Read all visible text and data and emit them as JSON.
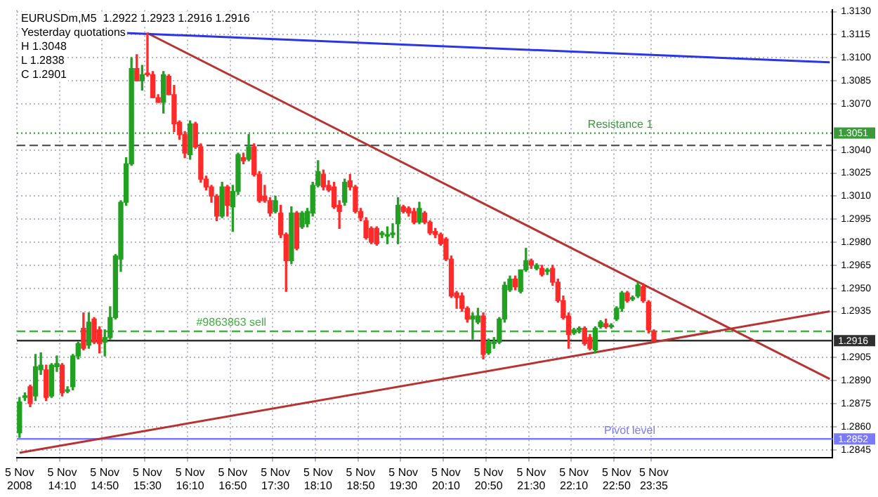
{
  "chart_data": {
    "type": "candlestick",
    "title": "EURUSDm,M5  1.2922 1.2923 1.2916 1.2916",
    "annotations": [
      "Yesterday quotations",
      "H 1.3048",
      "L 1.2838",
      "C 1.2901"
    ],
    "categories": [
      "5 Nov 2008",
      null,
      null,
      null,
      null,
      null,
      null,
      null,
      "5 Nov 14:10",
      null,
      null,
      null,
      null,
      null,
      null,
      null,
      "5 Nov 14:50",
      null,
      null,
      null,
      null,
      null,
      null,
      null,
      "5 Nov 15:30",
      null,
      null,
      null,
      null,
      null,
      null,
      null,
      "5 Nov 16:10",
      null,
      null,
      null,
      null,
      null,
      null,
      null,
      "5 Nov 16:50",
      null,
      null,
      null,
      null,
      null,
      null,
      null,
      "5 Nov 17:30",
      null,
      null,
      null,
      null,
      null,
      null,
      null,
      "5 Nov 18:10",
      null,
      null,
      null,
      null,
      null,
      null,
      null,
      "5 Nov 18:50",
      null,
      null,
      null,
      null,
      null,
      null,
      null,
      "5 Nov 19:30",
      null,
      null,
      null,
      null,
      null,
      null,
      null,
      "5 Nov 20:10",
      null,
      null,
      null,
      null,
      null,
      null,
      null,
      "5 Nov 20:50",
      null,
      null,
      null,
      null,
      null,
      null,
      null,
      "5 Nov 21:30",
      null,
      null,
      null,
      null,
      null,
      null,
      null,
      "5 Nov 22:10",
      null,
      null,
      null,
      null,
      null,
      null,
      null,
      "5 Nov 22:50",
      null,
      null,
      null,
      null,
      null,
      null,
      "5 Nov 23:35",
      null,
      null,
      null,
      null,
      null,
      null,
      null,
      null,
      null,
      null,
      null,
      null,
      null,
      null,
      null,
      null,
      null,
      null,
      null,
      null,
      null,
      null,
      null,
      null,
      null,
      null,
      null,
      null,
      null,
      null,
      null,
      null,
      null
    ],
    "ohlc": [
      [
        1.2856,
        1.2879,
        1.2853,
        1.2876
      ],
      [
        1.2879,
        1.2882,
        1.2877,
        1.288
      ],
      [
        1.2886,
        1.2887,
        1.2873,
        1.2875
      ],
      [
        1.288,
        1.2907,
        1.2877,
        1.2899
      ],
      [
        1.2897,
        1.2908,
        1.2894,
        1.29
      ],
      [
        1.2897,
        1.29,
        1.2877,
        1.2879
      ],
      [
        1.288,
        1.2901,
        1.2879,
        1.29
      ],
      [
        1.2899,
        1.2906,
        1.2896,
        1.2901
      ],
      [
        1.29,
        1.2901,
        1.288,
        1.2882
      ],
      [
        1.2883,
        1.2886,
        1.2882,
        1.2884
      ],
      [
        1.2886,
        1.2907,
        1.2884,
        1.2906
      ],
      [
        1.2906,
        1.2915,
        1.2904,
        1.2914
      ],
      [
        1.2924,
        1.2934,
        1.291,
        1.2911
      ],
      [
        1.2913,
        1.2934,
        1.2911,
        1.2928
      ],
      [
        1.293,
        1.2931,
        1.2914,
        1.2915
      ],
      [
        1.2923,
        1.2925,
        1.2908,
        1.2914
      ],
      [
        1.2915,
        1.2923,
        1.2906,
        1.2918
      ],
      [
        1.2918,
        1.2938,
        1.2917,
        1.2931
      ],
      [
        1.2931,
        1.2972,
        1.293,
        1.2971
      ],
      [
        1.2969,
        1.3007,
        1.2961,
        1.3006
      ],
      [
        1.3006,
        1.3035,
        1.3004,
        1.3031
      ],
      [
        1.3031,
        1.31,
        1.303,
        1.3093
      ],
      [
        1.3093,
        1.3102,
        1.3085,
        1.3085
      ],
      [
        1.3085,
        1.3095,
        1.3079,
        1.3089
      ],
      [
        1.309,
        1.3116,
        1.3088,
        1.3089
      ],
      [
        1.3089,
        1.3091,
        1.3074,
        1.3074
      ],
      [
        1.3074,
        1.3076,
        1.3071,
        1.3071
      ],
      [
        1.3071,
        1.3091,
        1.3064,
        1.3089
      ],
      [
        1.3088,
        1.3089,
        1.3076,
        1.3076
      ],
      [
        1.3076,
        1.3082,
        1.3052,
        1.3057
      ],
      [
        1.3058,
        1.3059,
        1.3047,
        1.305
      ],
      [
        1.305,
        1.3052,
        1.3035,
        1.3038
      ],
      [
        1.3037,
        1.3059,
        1.3034,
        1.3057
      ],
      [
        1.3057,
        1.3058,
        1.3041,
        1.3042
      ],
      [
        1.3042,
        1.3044,
        1.3019,
        1.3021
      ],
      [
        1.3021,
        1.3023,
        1.3014,
        1.3016
      ],
      [
        1.3016,
        1.3017,
        1.3006,
        1.301
      ],
      [
        1.301,
        1.3011,
        1.2994,
        1.2997
      ],
      [
        1.2997,
        1.3019,
        1.2996,
        1.3016
      ],
      [
        1.3016,
        1.3017,
        1.2997,
        1.3004
      ],
      [
        1.3003,
        1.3017,
        1.2987,
        1.3013
      ],
      [
        1.3013,
        1.3038,
        1.3011,
        1.3037
      ],
      [
        1.3035,
        1.3038,
        1.3031,
        1.3033
      ],
      [
        1.3034,
        1.305,
        1.3033,
        1.3042
      ],
      [
        1.3042,
        1.3044,
        1.3023,
        1.3024
      ],
      [
        1.3024,
        1.3026,
        1.3006,
        1.3007
      ],
      [
        1.301,
        1.3017,
        1.3006,
        1.3007
      ],
      [
        1.3007,
        1.3009,
        1.2997,
        1.2999
      ],
      [
        1.3,
        1.301,
        1.2999,
        1.3007
      ],
      [
        1.2999,
        1.3004,
        1.2983,
        1.2985
      ],
      [
        1.2985,
        1.2986,
        1.2948,
        1.2968
      ],
      [
        1.2968,
        1.3003,
        1.2966,
        1.2999
      ],
      [
        1.2999,
        1.3,
        1.2975,
        1.2976
      ],
      [
        1.299,
        1.3,
        1.2989,
        1.2999
      ],
      [
        1.2992,
        1.3002,
        1.299,
        1.3
      ],
      [
        1.2999,
        1.3019,
        1.2997,
        1.3017
      ],
      [
        1.3017,
        1.3033,
        1.3016,
        1.3026
      ],
      [
        1.3024,
        1.3027,
        1.3014,
        1.3016
      ],
      [
        1.3017,
        1.302,
        1.3013,
        1.3014
      ],
      [
        1.3016,
        1.3019,
        1.3002,
        1.3003
      ],
      [
        1.3004,
        1.3007,
        1.2989,
        1.3
      ],
      [
        1.3006,
        1.3021,
        1.3004,
        1.3019
      ],
      [
        1.302,
        1.3024,
        1.3014,
        1.3016
      ],
      [
        1.3016,
        1.3017,
        1.2999,
        1.3
      ],
      [
        1.3,
        1.3002,
        1.2994,
        1.2996
      ],
      [
        1.2994,
        1.2996,
        1.2982,
        1.2983
      ],
      [
        1.2989,
        1.299,
        1.2979,
        1.298
      ],
      [
        1.2989,
        1.299,
        1.2978,
        1.2979
      ],
      [
        1.2985,
        1.2987,
        1.2983,
        1.2986
      ],
      [
        1.2984,
        1.299,
        1.2979,
        1.2985
      ],
      [
        1.2985,
        1.2992,
        1.2983,
        1.2986
      ],
      [
        1.2992,
        1.3009,
        1.2979,
        1.3004
      ],
      [
        1.3003,
        1.3004,
        1.2999,
        1.3
      ],
      [
        1.3002,
        1.3003,
        1.2997,
        1.2999
      ],
      [
        1.3,
        1.3002,
        1.2992,
        1.2993
      ],
      [
        1.2993,
        1.3006,
        1.2992,
        1.3002
      ],
      [
        1.2999,
        1.3,
        1.2992,
        1.2993
      ],
      [
        1.2993,
        1.2994,
        1.2985,
        1.2986
      ],
      [
        1.2987,
        1.2989,
        1.2983,
        1.2985
      ],
      [
        1.2985,
        1.2986,
        1.2978,
        1.2979
      ],
      [
        1.2982,
        1.2983,
        1.2968,
        1.2969
      ],
      [
        1.2969,
        1.2971,
        1.2944,
        1.2945
      ],
      [
        1.2947,
        1.2948,
        1.2937,
        1.2944
      ],
      [
        1.2945,
        1.2947,
        1.2935,
        1.2937
      ],
      [
        1.2937,
        1.2938,
        1.2928,
        1.293
      ],
      [
        1.293,
        1.2934,
        1.2917,
        1.2932
      ],
      [
        1.2928,
        1.2937,
        1.2927,
        1.2932
      ],
      [
        1.2932,
        1.2934,
        1.2904,
        1.2907
      ],
      [
        1.2908,
        1.2917,
        1.2907,
        1.2915
      ],
      [
        1.2914,
        1.2918,
        1.2911,
        1.2915
      ],
      [
        1.2915,
        1.2931,
        1.2914,
        1.293
      ],
      [
        1.293,
        1.2954,
        1.2928,
        1.2952
      ],
      [
        1.2949,
        1.2958,
        1.2948,
        1.2956
      ],
      [
        1.2956,
        1.2958,
        1.2949,
        1.2951
      ],
      [
        1.2948,
        1.2962,
        1.2947,
        1.2962
      ],
      [
        1.2962,
        1.2976,
        1.2961,
        1.2968
      ],
      [
        1.2968,
        1.2969,
        1.2963,
        1.2965
      ],
      [
        1.2963,
        1.2966,
        1.2962,
        1.2965
      ],
      [
        1.2963,
        1.2965,
        1.2958,
        1.2959
      ],
      [
        1.2961,
        1.2963,
        1.2959,
        1.2962
      ],
      [
        1.2963,
        1.2965,
        1.2952,
        1.2954
      ],
      [
        1.2954,
        1.2956,
        1.2941,
        1.2942
      ],
      [
        1.2942,
        1.2945,
        1.293,
        1.2931
      ],
      [
        1.2932,
        1.2934,
        1.2911,
        1.292
      ],
      [
        1.2921,
        1.2924,
        1.292,
        1.2923
      ],
      [
        1.2923,
        1.2925,
        1.2921,
        1.2924
      ],
      [
        1.2924,
        1.2925,
        1.2913,
        1.2914
      ],
      [
        1.2918,
        1.292,
        1.291,
        1.2911
      ],
      [
        1.291,
        1.2925,
        1.2908,
        1.2924
      ],
      [
        1.2925,
        1.2929,
        1.2924,
        1.2928
      ],
      [
        1.2927,
        1.293,
        1.2924,
        1.2925
      ],
      [
        1.2925,
        1.2927,
        1.2924,
        1.2926
      ],
      [
        1.293,
        1.2938,
        1.2929,
        1.2937
      ],
      [
        1.2937,
        1.2948,
        1.2935,
        1.2947
      ],
      [
        1.2947,
        1.2948,
        1.2941,
        1.2942
      ],
      [
        1.2943,
        1.2945,
        1.2942,
        1.2944
      ],
      [
        1.2945,
        1.2954,
        1.2944,
        1.2952
      ],
      [
        1.2951,
        1.2953,
        1.2941,
        1.2942
      ],
      [
        1.2941,
        1.2942,
        1.2921,
        1.2923
      ],
      [
        1.2922,
        1.2923,
        1.2916,
        1.2916
      ],
      null,
      null,
      null,
      null,
      null,
      null,
      null,
      null,
      null,
      null,
      null,
      null,
      null,
      null,
      null,
      null,
      null,
      null,
      null,
      null,
      null,
      null,
      null,
      null,
      null,
      null,
      null,
      null,
      null,
      null,
      null,
      null,
      null
    ],
    "colors": [
      "#22a022",
      "#22a022",
      "#ff2a2a",
      "#22a022",
      "#22a022",
      "#ff2a2a",
      "#22a022",
      "#22a022",
      "#ff2a2a",
      "#22a022",
      "#22a022",
      "#22a022",
      "#ff2a2a",
      "#22a022",
      "#ff2a2a",
      "#ff2a2a",
      "#22a022",
      "#22a022",
      "#22a022",
      "#22a022",
      "#22a022",
      "#22a022",
      "#ff2a2a",
      "#22a022",
      "#ff2a2a",
      "#ff2a2a",
      "#ff2a2a",
      "#22a022",
      "#ff2a2a",
      "#ff2a2a",
      "#ff2a2a",
      "#ff2a2a",
      "#22a022",
      "#ff2a2a",
      "#ff2a2a",
      "#ff2a2a",
      "#ff2a2a",
      "#ff2a2a",
      "#22a022",
      "#ff2a2a",
      "#22a022",
      "#22a022",
      "#ff2a2a",
      "#22a022",
      "#ff2a2a",
      "#ff2a2a",
      "#ff2a2a",
      "#ff2a2a",
      "#22a022",
      "#ff2a2a",
      "#ff2a2a",
      "#22a022",
      "#ff2a2a",
      "#22a022",
      "#22a022",
      "#22a022",
      "#22a022",
      "#ff2a2a",
      "#ff2a2a",
      "#ff2a2a",
      "#ff2a2a",
      "#22a022",
      "#ff2a2a",
      "#ff2a2a",
      "#ff2a2a",
      "#ff2a2a",
      "#ff2a2a",
      "#ff2a2a",
      "#22a022",
      "#22a022",
      "#22a022",
      "#22a022",
      "#ff2a2a",
      "#ff2a2a",
      "#ff2a2a",
      "#22a022",
      "#ff2a2a",
      "#ff2a2a",
      "#ff2a2a",
      "#ff2a2a",
      "#ff2a2a",
      "#ff2a2a",
      "#ff2a2a",
      "#ff2a2a",
      "#ff2a2a",
      "#22a022",
      "#22a022",
      "#ff2a2a",
      "#22a022",
      "#22a022",
      "#22a022",
      "#22a022",
      "#22a022",
      "#ff2a2a",
      "#22a022",
      "#22a022",
      "#ff2a2a",
      "#22a022",
      "#ff2a2a",
      "#22a022",
      "#ff2a2a",
      "#ff2a2a",
      "#ff2a2a",
      "#ff2a2a",
      "#22a022",
      "#22a022",
      "#ff2a2a",
      "#ff2a2a",
      "#22a022",
      "#22a022",
      "#ff2a2a",
      "#22a022",
      "#22a022",
      "#22a022",
      "#ff2a2a",
      "#22a022",
      "#22a022",
      "#ff2a2a",
      "#ff2a2a",
      "#ff2a2a",
      null,
      null,
      null,
      null,
      null,
      null,
      null,
      null,
      null,
      null,
      null,
      null,
      null,
      null,
      null,
      null,
      null,
      null,
      null,
      null,
      null,
      null,
      null,
      null,
      null,
      null,
      null,
      null,
      null,
      null,
      null,
      null,
      null
    ],
    "series": [
      {
        "type": "line",
        "color": "#2a35e8",
        "values": [
          1.3119,
          null,
          null,
          null,
          null,
          null,
          null,
          null,
          null,
          null,
          null,
          null,
          null,
          null,
          null,
          null,
          null,
          null,
          null,
          null,
          null,
          null,
          null,
          null,
          null,
          null,
          null,
          null,
          null,
          null,
          null,
          null,
          null,
          null,
          null,
          null,
          null,
          null,
          null,
          null,
          null,
          null,
          null,
          null,
          null,
          null,
          null,
          null,
          null,
          null,
          null,
          null,
          null,
          null,
          null,
          null,
          null,
          null,
          null,
          null,
          null,
          null,
          null,
          null,
          null,
          null,
          null,
          null,
          null,
          null,
          null,
          null,
          null,
          null,
          null,
          null,
          null,
          null,
          null,
          null,
          null,
          null,
          null,
          null,
          null,
          null,
          null,
          null,
          null,
          null,
          null,
          null,
          null,
          null,
          null,
          null,
          null,
          null,
          null,
          null,
          null,
          null,
          null,
          null,
          null,
          null,
          null,
          null,
          null,
          null,
          null,
          null,
          null,
          null,
          null,
          null,
          null,
          null,
          null,
          null,
          null,
          null,
          null,
          null,
          null,
          null,
          null,
          null,
          null,
          null,
          null,
          null,
          null,
          null,
          null,
          null,
          null,
          null,
          null,
          null,
          null,
          null,
          null,
          null,
          null,
          null,
          null,
          null,
          null,
          null,
          null,
          null,
          1.3097
        ]
      },
      {
        "type": "line",
        "color": "#b83232",
        "values": [
          null,
          null,
          null,
          null,
          null,
          null,
          null,
          null,
          null,
          null,
          null,
          null,
          null,
          null,
          null,
          null,
          null,
          null,
          null,
          null,
          null,
          null,
          null,
          null,
          1.3116,
          null,
          null,
          null,
          null,
          null,
          null,
          null,
          null,
          null,
          null,
          null,
          null,
          null,
          null,
          null,
          null,
          null,
          null,
          null,
          null,
          null,
          null,
          null,
          null,
          null,
          null,
          null,
          null,
          null,
          null,
          null,
          null,
          null,
          null,
          null,
          null,
          null,
          null,
          null,
          null,
          null,
          null,
          null,
          null,
          null,
          null,
          null,
          null,
          null,
          null,
          null,
          null,
          null,
          null,
          null,
          null,
          null,
          null,
          null,
          null,
          null,
          null,
          null,
          null,
          null,
          null,
          null,
          null,
          null,
          null,
          null,
          null,
          null,
          null,
          null,
          null,
          null,
          null,
          null,
          null,
          null,
          null,
          null,
          null,
          null,
          null,
          null,
          null,
          null,
          null,
          null,
          null,
          null,
          null,
          null,
          null,
          null,
          null,
          null,
          null,
          null,
          null,
          null,
          null,
          null,
          null,
          null,
          null,
          null,
          null,
          null,
          null,
          null,
          null,
          null,
          null,
          null,
          null,
          null,
          null,
          null,
          null,
          null,
          null,
          null,
          null,
          null,
          1.2891
        ]
      },
      {
        "type": "line",
        "color": "#b83232",
        "values": [
          1.2843,
          null,
          null,
          null,
          null,
          null,
          null,
          null,
          null,
          null,
          null,
          null,
          null,
          null,
          null,
          null,
          null,
          null,
          null,
          null,
          null,
          null,
          null,
          null,
          null,
          null,
          null,
          null,
          null,
          null,
          null,
          null,
          null,
          null,
          null,
          null,
          null,
          null,
          null,
          null,
          null,
          null,
          null,
          null,
          null,
          null,
          null,
          null,
          null,
          null,
          null,
          null,
          null,
          null,
          null,
          null,
          null,
          null,
          null,
          null,
          null,
          null,
          null,
          null,
          null,
          null,
          null,
          null,
          null,
          null,
          null,
          null,
          null,
          null,
          null,
          null,
          null,
          null,
          null,
          null,
          null,
          null,
          null,
          null,
          null,
          null,
          null,
          null,
          null,
          null,
          null,
          null,
          null,
          null,
          null,
          null,
          null,
          null,
          null,
          null,
          null,
          null,
          null,
          null,
          null,
          null,
          null,
          null,
          null,
          null,
          null,
          null,
          null,
          null,
          null,
          null,
          null,
          null,
          null,
          null,
          null,
          null,
          null,
          null,
          null,
          null,
          null,
          null,
          null,
          null,
          null,
          null,
          null,
          null,
          null,
          null,
          null,
          null,
          null,
          null,
          null,
          null,
          null,
          null,
          null,
          null,
          null,
          null,
          null,
          null,
          null,
          null,
          1.2935
        ]
      }
    ],
    "ref_lines": [
      {
        "axis": "y",
        "value": 1.3051,
        "label": "Resistance 1",
        "color": "#3a9a3a",
        "line_style": "dotted"
      },
      {
        "axis": "y",
        "value": 1.3043,
        "color": "#555555",
        "line_style": "dashed"
      },
      {
        "axis": "y",
        "value": 1.2922,
        "label": "#9863863 sell",
        "color": "#40b040",
        "line_style": "dashed"
      },
      {
        "axis": "y",
        "value": 1.2916,
        "color": "#303030",
        "line_style": "solid"
      },
      {
        "axis": "y",
        "value": 1.2852,
        "label": "Pivot level",
        "color": "#7a7aff",
        "line_style": "solid"
      }
    ],
    "ylim": [
      1.284,
      1.3131
    ],
    "yticks": [
      1.2845,
      {
        "value": 1.2852,
        "label": "1.2852"
      },
      {
        "value": 1.286,
        "label": "1.2860"
      },
      1.2875,
      {
        "value": 1.289,
        "label": "1.2890"
      },
      1.2905,
      {
        "value": 1.2916,
        "label": "1.2916"
      },
      1.2935,
      {
        "value": 1.295,
        "label": "1.2950"
      },
      1.2965,
      {
        "value": 1.298,
        "label": "1.2980"
      },
      1.2995,
      {
        "value": 1.301,
        "label": "1.3010"
      },
      1.3025,
      {
        "value": 1.304,
        "label": "1.3040"
      },
      {
        "value": 1.3051,
        "label": "1.3051"
      },
      {
        "value": 1.307,
        "label": "1.3070"
      },
      1.3085,
      {
        "value": 1.31,
        "label": "1.3100"
      },
      1.3115,
      {
        "value": 1.313,
        "label": "1.3130"
      }
    ],
    "grid": true
  }
}
